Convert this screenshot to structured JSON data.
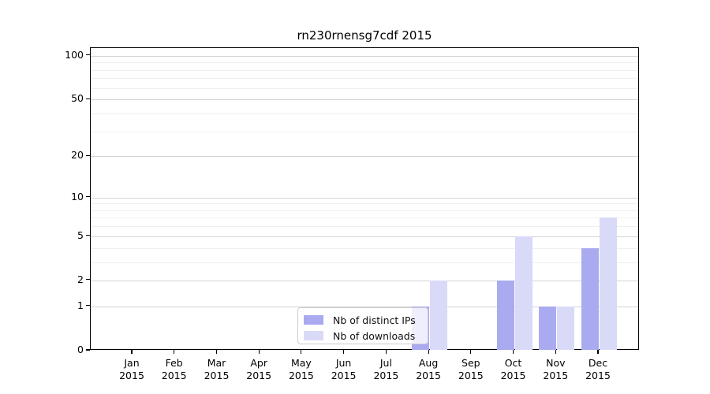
{
  "chart_data": {
    "type": "bar",
    "title": "rn230rnensg7cdf 2015",
    "categories": [
      "Jan 2015",
      "Feb 2015",
      "Mar 2015",
      "Apr 2015",
      "May 2015",
      "Jun 2015",
      "Jul 2015",
      "Aug 2015",
      "Sep 2015",
      "Oct 2015",
      "Nov 2015",
      "Dec 2015"
    ],
    "series": [
      {
        "name": "Nb of distinct IPs",
        "values": [
          0,
          0,
          0,
          0,
          0,
          0,
          0,
          1,
          0,
          2,
          1,
          4
        ],
        "color": "#aaaaf0"
      },
      {
        "name": "Nb of downloads",
        "values": [
          0,
          0,
          0,
          0,
          0,
          0,
          0,
          2,
          0,
          5,
          1,
          7
        ],
        "color": "#d9d9f8"
      }
    ],
    "xlabel": "",
    "ylabel": "",
    "yscale": "log1p",
    "ylim": [
      0,
      113
    ],
    "yticks": [
      0,
      1,
      2,
      5,
      10,
      20,
      50,
      100
    ],
    "yticks_minor": [
      3,
      4,
      6,
      7,
      8,
      9,
      30,
      40,
      60,
      70,
      80,
      90
    ],
    "grid": true,
    "legend_position": "lower-center",
    "colors": {
      "major_gridline": "#d3d3d3",
      "minor_gridline": "#efefef",
      "axis": "#000000",
      "background": "#ffffff"
    }
  }
}
